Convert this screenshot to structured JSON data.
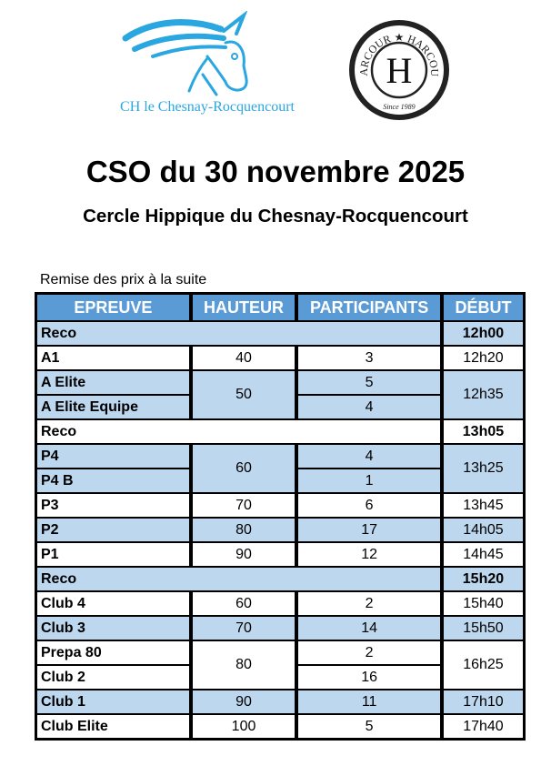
{
  "logos": {
    "club_name": "CH le Chesnay-Rocquencourt",
    "seal_text": "HARCOUR ★ HARCOUR",
    "seal_letter": "H",
    "seal_since": "Since 1989"
  },
  "title": "CSO du 30 novembre 2025",
  "subtitle": "Cercle Hippique du Chesnay-Rocquencourt",
  "note": "Remise des prix à la suite",
  "colors": {
    "header": "#5b9bd5",
    "shade": "#bdd7ee",
    "logo_blue": "#2aa6e0"
  },
  "table": {
    "headers": [
      "EPREUVE",
      "HAUTEUR",
      "PARTICIPANTS",
      "DÉBUT"
    ],
    "groups": [
      {
        "type": "reco",
        "epreuve": "Reco",
        "debut": "12h00",
        "shaded": true
      },
      {
        "hauteur": "40",
        "debut": "12h20",
        "shaded": false,
        "entries": [
          {
            "epreuve": "A1",
            "participants": "3"
          }
        ]
      },
      {
        "hauteur": "50",
        "debut": "12h35",
        "shaded": true,
        "entries": [
          {
            "epreuve": "A Elite",
            "participants": "5"
          },
          {
            "epreuve": "A Elite Equipe",
            "participants": "4"
          }
        ]
      },
      {
        "type": "reco",
        "epreuve": "Reco",
        "debut": "13h05",
        "shaded": false
      },
      {
        "hauteur": "60",
        "debut": "13h25",
        "shaded": true,
        "entries": [
          {
            "epreuve": "P4",
            "participants": "4"
          },
          {
            "epreuve": "P4 B",
            "participants": "1"
          }
        ]
      },
      {
        "hauteur": "70",
        "debut": "13h45",
        "shaded": false,
        "entries": [
          {
            "epreuve": "P3",
            "participants": "6"
          }
        ]
      },
      {
        "hauteur": "80",
        "debut": "14h05",
        "shaded": true,
        "entries": [
          {
            "epreuve": "P2",
            "participants": "17"
          }
        ]
      },
      {
        "hauteur": "90",
        "debut": "14h45",
        "shaded": false,
        "entries": [
          {
            "epreuve": "P1",
            "participants": "12"
          }
        ]
      },
      {
        "type": "reco",
        "epreuve": "Reco",
        "debut": "15h20",
        "shaded": true
      },
      {
        "hauteur": "60",
        "debut": "15h40",
        "shaded": false,
        "entries": [
          {
            "epreuve": "Club 4",
            "participants": "2"
          }
        ]
      },
      {
        "hauteur": "70",
        "debut": "15h50",
        "shaded": true,
        "entries": [
          {
            "epreuve": "Club 3",
            "participants": "14"
          }
        ]
      },
      {
        "hauteur": "80",
        "debut": "16h25",
        "shaded": false,
        "entries": [
          {
            "epreuve": "Prepa 80",
            "participants": "2"
          },
          {
            "epreuve": "Club 2",
            "participants": "16"
          }
        ]
      },
      {
        "hauteur": "90",
        "debut": "17h10",
        "shaded": true,
        "entries": [
          {
            "epreuve": "Club 1",
            "participants": "11"
          }
        ]
      },
      {
        "hauteur": "100",
        "debut": "17h40",
        "shaded": false,
        "entries": [
          {
            "epreuve": "Club Elite",
            "participants": "5"
          }
        ]
      }
    ]
  }
}
